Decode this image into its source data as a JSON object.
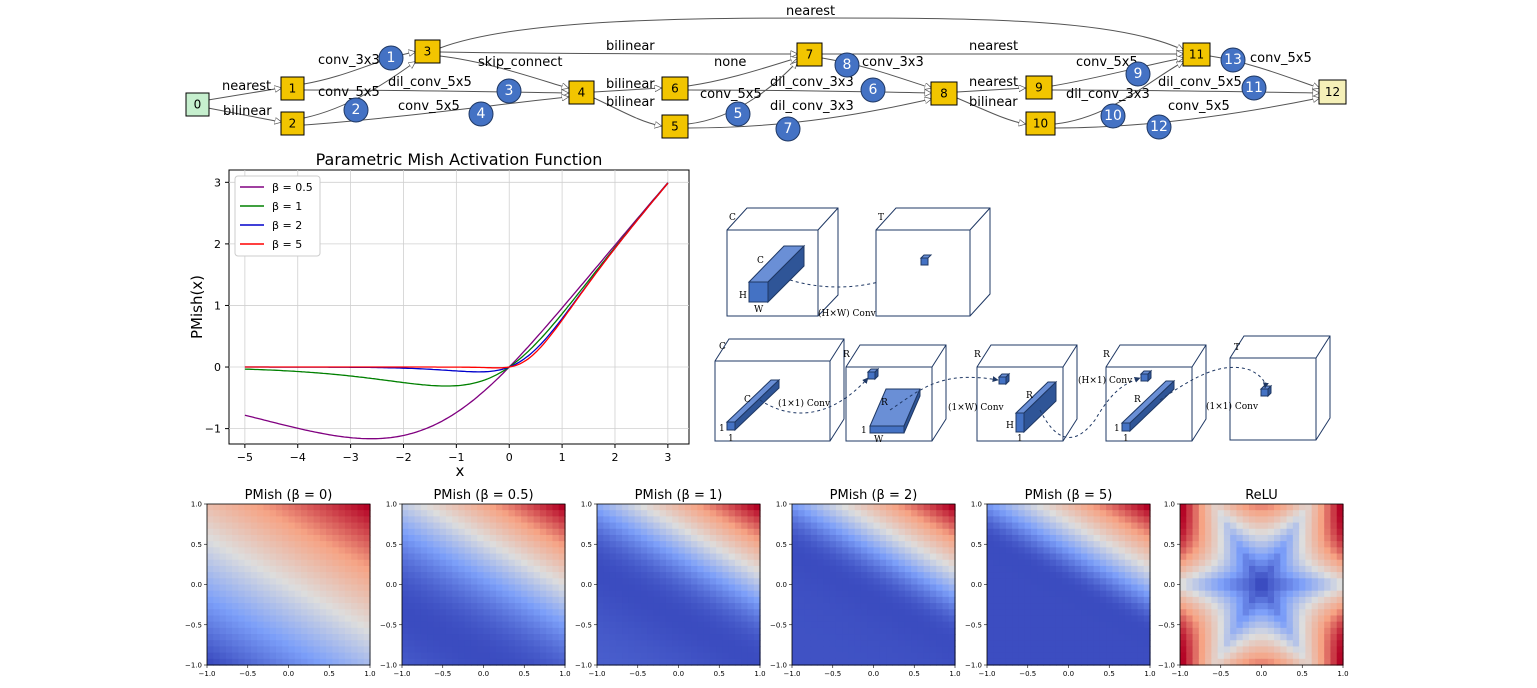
{
  "graph": {
    "nodes": [
      {
        "id": "0",
        "label": "0",
        "kind": "input"
      },
      {
        "id": "1",
        "label": "1",
        "kind": "op"
      },
      {
        "id": "2",
        "label": "2",
        "kind": "op"
      },
      {
        "id": "3",
        "label": "3",
        "kind": "op"
      },
      {
        "id": "4",
        "label": "4",
        "kind": "op"
      },
      {
        "id": "5",
        "label": "5",
        "kind": "op"
      },
      {
        "id": "6",
        "label": "6",
        "kind": "op"
      },
      {
        "id": "7",
        "label": "7",
        "kind": "op"
      },
      {
        "id": "8",
        "label": "8",
        "kind": "op"
      },
      {
        "id": "9",
        "label": "9",
        "kind": "op"
      },
      {
        "id": "10",
        "label": "10",
        "kind": "op"
      },
      {
        "id": "11",
        "label": "11",
        "kind": "op"
      },
      {
        "id": "12",
        "label": "12",
        "kind": "output"
      }
    ],
    "edge_labels": [
      "nearest",
      "bilinear",
      "conv_3x3",
      "conv_5x5",
      "dil_conv_5x5",
      "conv_5x5",
      "skip_connect",
      "bilinear",
      "bilinear",
      "bilinear",
      "none",
      "conv_5x5",
      "conv_3x3",
      "dil_conv_3x3",
      "dil_conv_3x3",
      "nearest",
      "nearest",
      "bilinear",
      "conv_5x5",
      "dil_conv_3x3",
      "dil_conv_5x5",
      "conv_5x5",
      "conv_5x5",
      "nearest"
    ],
    "badges": [
      "1",
      "2",
      "3",
      "4",
      "5",
      "6",
      "7",
      "8",
      "9",
      "10",
      "11",
      "12",
      "13"
    ],
    "colors": {
      "input": "#c6efce",
      "op": "#f2c500",
      "output": "#f5f0b8",
      "badge": "#4472c4"
    }
  },
  "chart_data": [
    {
      "type": "line",
      "title": "Parametric Mish Activation Function",
      "xlabel": "x",
      "ylabel": "PMish(x)",
      "xlim": [
        -5.3,
        3.4
      ],
      "ylim": [
        -1.25,
        3.2
      ],
      "xticks": [
        "−5",
        "−4",
        "−3",
        "−2",
        "−1",
        "0",
        "1",
        "2",
        "3"
      ],
      "yticks": [
        "−1",
        "0",
        "1",
        "2",
        "3"
      ],
      "grid": true,
      "legend": "top-left",
      "series": [
        {
          "name": "β = 0.5",
          "beta": 0.5,
          "color": "#800080"
        },
        {
          "name": "β = 1",
          "beta": 1,
          "color": "#008000"
        },
        {
          "name": "β = 2",
          "beta": 2,
          "color": "#0000cc"
        },
        {
          "name": "β = 5",
          "beta": 5,
          "color": "#ff0000"
        }
      ]
    },
    {
      "type": "heatmap",
      "panels": [
        {
          "title": "PMish (β = 0)",
          "beta": 0
        },
        {
          "title": "PMish (β = 0.5)",
          "beta": 0.5
        },
        {
          "title": "PMish (β = 1)",
          "beta": 1
        },
        {
          "title": "PMish (β = 2)",
          "beta": 2
        },
        {
          "title": "PMish (β = 5)",
          "beta": 5
        },
        {
          "title": "ReLU",
          "beta": null
        }
      ],
      "xlim": [
        -1.0,
        1.0
      ],
      "ylim": [
        -1.0,
        1.0
      ],
      "xticks": [
        "−1.0",
        "−0.5",
        "0.0",
        "0.5",
        "1.0"
      ],
      "yticks": [
        "1.0",
        "0.5",
        "0.0",
        "−0.5",
        "−1.0"
      ],
      "colormap": "coolwarm"
    }
  ],
  "conv_diagram": {
    "top": {
      "in_dim": "C",
      "out_dim": "T",
      "block_c": "C",
      "block_h": "H",
      "block_w": "W",
      "op": "(H×W) Conv"
    },
    "bottom": {
      "cube_dims": [
        "C",
        "R",
        "R",
        "R",
        "T"
      ],
      "block1": {
        "c": "C",
        "one_a": "1",
        "one_b": "1"
      },
      "block2": {
        "r": "R",
        "one": "1",
        "w": "W"
      },
      "block3": {
        "r": "R",
        "h": "H",
        "one": "1"
      },
      "block4": {
        "r": "R",
        "one_a": "1",
        "one_b": "1"
      },
      "ops": [
        "(1×1) Conv",
        "(1×W) Conv",
        "(H×1) Conv",
        "(1×1) Conv"
      ]
    }
  }
}
